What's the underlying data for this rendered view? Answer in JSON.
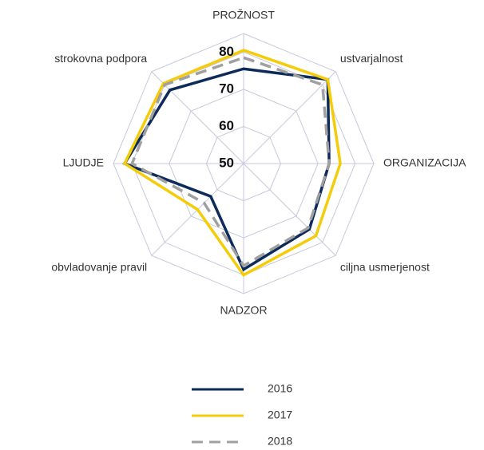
{
  "chart_data": {
    "type": "radar",
    "categories": [
      "PROŽNOST",
      "ustvarjalnost",
      "ORGANIZACIJA",
      "ciljna usmerjenost",
      "NADZOR",
      "obvladovanje pravil",
      "LJUDJE",
      "strokovna podpora"
    ],
    "series": [
      {
        "name": "2016",
        "color": "#0d2b5a",
        "dash": false,
        "values": [
          75.5,
          82,
          73,
          75,
          78.5,
          62.5,
          82,
          78
        ]
      },
      {
        "name": "2017",
        "color": "#f5cc0a",
        "dash": false,
        "values": [
          80.5,
          82,
          76,
          77.5,
          80,
          67.5,
          82,
          80.5
        ]
      },
      {
        "name": "2018",
        "color": "#a0a0a0",
        "dash": true,
        "values": [
          78.5,
          80,
          73,
          74.5,
          77.5,
          65,
          80,
          80
        ]
      }
    ],
    "ylim": [
      50,
      85
    ],
    "yticks": [
      50,
      60,
      70,
      80
    ],
    "grid": true,
    "legend": "bottom"
  }
}
